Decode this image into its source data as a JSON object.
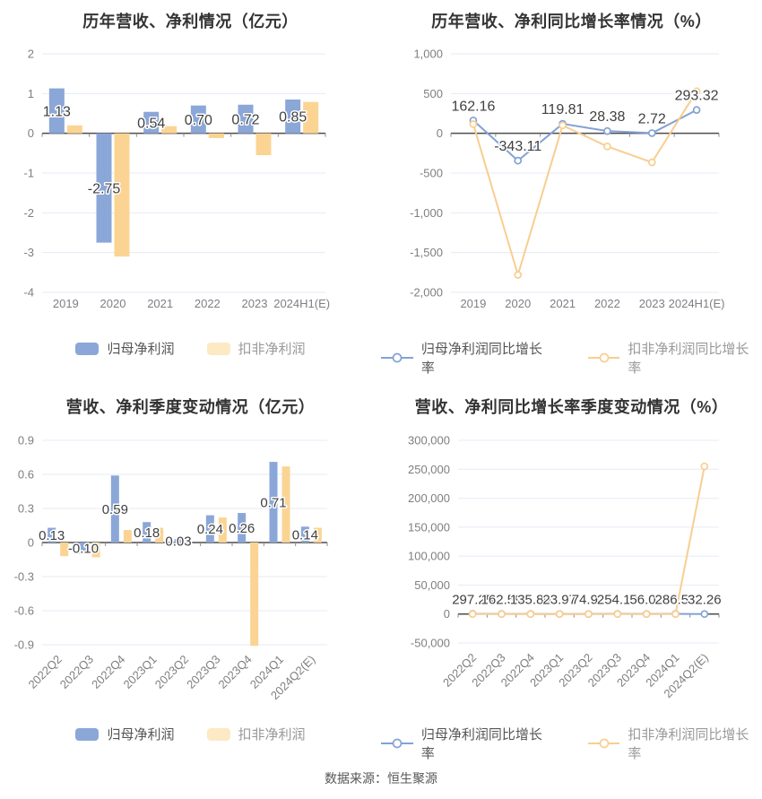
{
  "page": {
    "footer_note": "数据来源：恒生聚源"
  },
  "colors": {
    "bar_blue": "#8BA7D8",
    "bar_yellow": "#FBD494",
    "line_blue": "#83A2D4",
    "line_yellow": "#F8CE90",
    "legend_yellow_swatch": "#FDE9C4",
    "grid": "#E4EBF6",
    "zero_axis": "#4D4D4D",
    "tick_text": "#7F7F7F",
    "title_text": "#333333",
    "value_label_text": "#404040"
  },
  "chart_data": [
    {
      "type": "bar",
      "title": "历年营收、净利情况（亿元）",
      "categories": [
        "2019",
        "2020",
        "2021",
        "2022",
        "2023",
        "2024H1(E)"
      ],
      "yticks": [
        2,
        1,
        0,
        -1,
        -2,
        -3,
        -4
      ],
      "ytick_labels": [
        "2",
        "1",
        "0",
        "-1",
        "-2",
        "-3",
        "-4"
      ],
      "rotated_x_labels": false,
      "legend_position": "bottom",
      "grid_on": true,
      "series": [
        {
          "name": "归母净利润",
          "role": "blue",
          "values": [
            1.13,
            -2.75,
            0.54,
            0.7,
            0.72,
            0.85
          ],
          "labels": [
            "1.13",
            "-2.75",
            "0.54",
            "0.70",
            "0.72",
            "0.85"
          ]
        },
        {
          "name": "扣非净利润",
          "role": "yellow",
          "values": [
            0.2,
            -3.1,
            0.18,
            -0.12,
            -0.55,
            0.79
          ]
        }
      ]
    },
    {
      "type": "line",
      "title": "历年营收、净利同比增长率情况（%）",
      "categories": [
        "2019",
        "2020",
        "2021",
        "2022",
        "2023",
        "2024H1(E)"
      ],
      "yticks": [
        1000,
        500,
        0,
        -500,
        -1000,
        -1500,
        -2000
      ],
      "ytick_labels": [
        "1,000",
        "500",
        "0",
        "-500",
        "-1,000",
        "-1,500",
        "-2,000"
      ],
      "rotated_x_labels": false,
      "legend_position": "bottom",
      "grid_on": true,
      "series": [
        {
          "name": "归母净利润同比增长率",
          "role": "blue",
          "values": [
            162.16,
            -343.11,
            119.81,
            28.38,
            2.72,
            293.32
          ],
          "labels": [
            "162.16",
            "-343.11",
            "119.81",
            "28.38",
            "2.72",
            "293.32"
          ]
        },
        {
          "name": "扣非净利润同比增长率",
          "role": "yellow",
          "values": [
            115,
            -1780,
            100,
            -165,
            -365,
            530
          ]
        }
      ]
    },
    {
      "type": "bar",
      "title": "营收、净利季度变动情况（亿元）",
      "categories": [
        "2022Q2",
        "2022Q3",
        "2022Q4",
        "2023Q1",
        "2023Q2",
        "2023Q3",
        "2023Q4",
        "2024Q1",
        "2024Q2(E)"
      ],
      "yticks": [
        0.9,
        0.6,
        0.3,
        0,
        -0.3,
        -0.6,
        -0.9
      ],
      "ytick_labels": [
        "0.9",
        "0.6",
        "0.3",
        "0",
        "-0.3",
        "-0.6",
        "-0.9"
      ],
      "rotated_x_labels": true,
      "legend_position": "bottom",
      "grid_on": true,
      "series": [
        {
          "name": "归母净利润",
          "role": "blue",
          "values": [
            0.13,
            -0.1,
            0.59,
            0.18,
            0.03,
            0.24,
            0.26,
            0.71,
            0.14
          ],
          "labels": [
            "0.13",
            "-0.10",
            "0.59",
            "0.18",
            "0.03",
            "0.24",
            "0.26",
            "0.71",
            "0.14"
          ]
        },
        {
          "name": "扣非净利润",
          "role": "yellow",
          "values": [
            -0.12,
            -0.13,
            0.11,
            0.13,
            0.0,
            0.22,
            -0.91,
            0.67,
            0.13
          ]
        }
      ]
    },
    {
      "type": "line",
      "title": "营收、净利同比增长率季度变动情况（%）",
      "categories": [
        "2022Q2",
        "2022Q3",
        "2022Q4",
        "2023Q1",
        "2023Q2",
        "2023Q3",
        "2023Q4",
        "2024Q1",
        "2024Q2(E)"
      ],
      "yticks": [
        300000,
        250000,
        200000,
        150000,
        100000,
        50000,
        0,
        -50000
      ],
      "ytick_labels": [
        "300,000",
        "250,000",
        "200,000",
        "150,000",
        "100,000",
        "50,000",
        "0",
        "-50,000"
      ],
      "rotated_x_labels": true,
      "legend_position": "bottom",
      "grid_on": true,
      "series": [
        {
          "name": "归母净利润同比增长率",
          "role": "blue",
          "values": [
            297.25,
            162.59,
            135.8,
            23.97,
            74.92,
            254.18,
            56.02,
            286.55,
            32.26
          ],
          "labels": [
            "297.25",
            "162.59",
            "135.80",
            "23.97",
            "74.92",
            "254.18",
            "56.02",
            "286.55",
            "32.26"
          ]
        },
        {
          "name": "扣非净利润同比增长率",
          "role": "yellow",
          "values": [
            0,
            0,
            0,
            0,
            0,
            0,
            0,
            0,
            255000
          ]
        }
      ]
    }
  ]
}
